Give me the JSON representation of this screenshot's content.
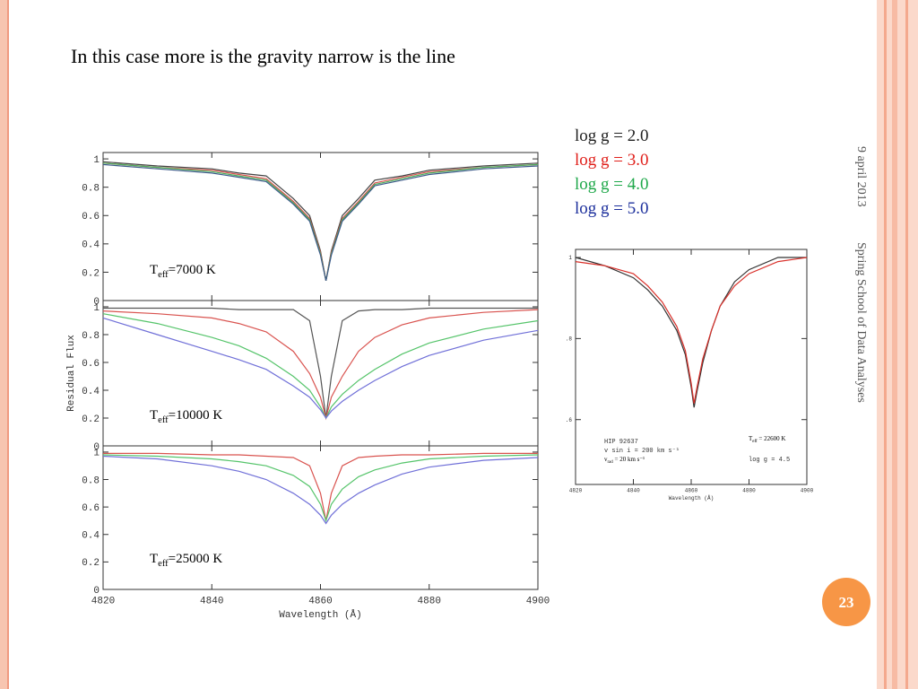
{
  "slide": {
    "title": "In this case more is the gravity narrow is the line",
    "legend": [
      {
        "label": "log g = 2.0",
        "color": "#222222"
      },
      {
        "label": "log g = 3.0",
        "color": "#e0201b"
      },
      {
        "label": "log g = 4.0",
        "color": "#1fa84a"
      },
      {
        "label": "log g = 5.0",
        "color": "#1c2f9c"
      }
    ],
    "date": "9 april 2013",
    "footer": "Spring School of Data Analyses",
    "page_number": "23"
  },
  "chart_data": [
    {
      "type": "line",
      "label": {
        "main": "T",
        "sub": "eff",
        "rest": "=7000 K"
      },
      "x": [
        4820,
        4830,
        4840,
        4845,
        4850,
        4855,
        4858,
        4860,
        4861,
        4862,
        4864,
        4867,
        4870,
        4875,
        4880,
        4890,
        4900
      ],
      "xlim": [
        4820,
        4900
      ],
      "xticks": [
        4820,
        4840,
        4860,
        4880,
        4900
      ],
      "ylim": [
        0,
        1.045
      ],
      "yticks": [
        0,
        0.2,
        0.4,
        0.6,
        0.8,
        1
      ],
      "series": [
        {
          "color": "#444444",
          "values": [
            0.98,
            0.95,
            0.93,
            0.9,
            0.88,
            0.72,
            0.6,
            0.35,
            0.14,
            0.35,
            0.6,
            0.72,
            0.85,
            0.88,
            0.92,
            0.95,
            0.97
          ]
        },
        {
          "color": "#d9534f",
          "values": [
            0.97,
            0.94,
            0.92,
            0.89,
            0.86,
            0.7,
            0.58,
            0.34,
            0.14,
            0.34,
            0.58,
            0.7,
            0.83,
            0.87,
            0.91,
            0.94,
            0.96
          ]
        },
        {
          "color": "#4cae5c",
          "values": [
            0.97,
            0.94,
            0.91,
            0.88,
            0.85,
            0.69,
            0.57,
            0.33,
            0.14,
            0.33,
            0.57,
            0.69,
            0.82,
            0.86,
            0.9,
            0.94,
            0.96
          ]
        },
        {
          "color": "#3d5a8a",
          "values": [
            0.96,
            0.93,
            0.9,
            0.87,
            0.84,
            0.68,
            0.56,
            0.32,
            0.14,
            0.32,
            0.56,
            0.68,
            0.81,
            0.85,
            0.89,
            0.93,
            0.95
          ]
        }
      ]
    },
    {
      "type": "line",
      "label": {
        "main": "T",
        "sub": "eff",
        "rest": "=10000 K"
      },
      "ylabel": "Residual Flux",
      "x": [
        4820,
        4830,
        4840,
        4845,
        4850,
        4855,
        4858,
        4860,
        4861,
        4862,
        4864,
        4867,
        4870,
        4875,
        4880,
        4890,
        4900
      ],
      "xlim": [
        4820,
        4900
      ],
      "xticks": [
        4820,
        4840,
        4860,
        4880,
        4900
      ],
      "ylim": [
        0,
        1.045
      ],
      "yticks": [
        0,
        0.2,
        0.4,
        0.6,
        0.8,
        1
      ],
      "series": [
        {
          "color": "#555555",
          "values": [
            0.99,
            0.99,
            0.99,
            0.98,
            0.98,
            0.98,
            0.9,
            0.5,
            0.2,
            0.5,
            0.9,
            0.97,
            0.98,
            0.98,
            0.99,
            0.99,
            0.99
          ]
        },
        {
          "color": "#d9534f",
          "values": [
            0.97,
            0.95,
            0.92,
            0.88,
            0.82,
            0.68,
            0.52,
            0.35,
            0.2,
            0.35,
            0.5,
            0.68,
            0.78,
            0.87,
            0.92,
            0.96,
            0.98
          ]
        },
        {
          "color": "#55c46a",
          "values": [
            0.95,
            0.88,
            0.78,
            0.72,
            0.63,
            0.5,
            0.4,
            0.28,
            0.2,
            0.28,
            0.37,
            0.47,
            0.55,
            0.66,
            0.74,
            0.84,
            0.9
          ]
        },
        {
          "color": "#7070d8",
          "values": [
            0.92,
            0.8,
            0.68,
            0.62,
            0.55,
            0.43,
            0.35,
            0.26,
            0.2,
            0.25,
            0.32,
            0.4,
            0.47,
            0.57,
            0.65,
            0.76,
            0.83
          ]
        }
      ]
    },
    {
      "type": "line",
      "label": {
        "main": "T",
        "sub": "eff",
        "rest": "=25000 K"
      },
      "xlabel": "Wavelength (Å)",
      "show_xtick_labels": true,
      "x": [
        4820,
        4830,
        4840,
        4845,
        4850,
        4855,
        4858,
        4860,
        4861,
        4862,
        4864,
        4867,
        4870,
        4875,
        4880,
        4890,
        4900
      ],
      "xlim": [
        4820,
        4900
      ],
      "xticks": [
        4820,
        4840,
        4860,
        4880,
        4900
      ],
      "ylim": [
        0,
        1.045
      ],
      "yticks": [
        0,
        0.2,
        0.4,
        0.6,
        0.8,
        1
      ],
      "series": [
        {
          "color": "#d9534f",
          "values": [
            0.99,
            0.99,
            0.98,
            0.98,
            0.97,
            0.96,
            0.9,
            0.7,
            0.5,
            0.7,
            0.9,
            0.96,
            0.97,
            0.98,
            0.98,
            0.99,
            0.99
          ]
        },
        {
          "color": "#55c46a",
          "values": [
            0.98,
            0.97,
            0.95,
            0.93,
            0.9,
            0.83,
            0.75,
            0.62,
            0.5,
            0.62,
            0.73,
            0.82,
            0.87,
            0.92,
            0.95,
            0.97,
            0.98
          ]
        },
        {
          "color": "#7070d8",
          "values": [
            0.97,
            0.95,
            0.9,
            0.86,
            0.8,
            0.7,
            0.62,
            0.54,
            0.48,
            0.54,
            0.62,
            0.7,
            0.76,
            0.84,
            0.89,
            0.94,
            0.96
          ]
        }
      ]
    },
    {
      "type": "line",
      "xlabel": "Wavelength (Å)",
      "show_xtick_labels": true,
      "annotations": {
        "star": "HIP 92637",
        "vsini": "v sin i = 200  km  s⁻¹",
        "vrad": {
          "main": "v",
          "sub": "rad",
          "rest": " = 20  km  s⁻¹"
        },
        "teff": {
          "main": "T",
          "sub": "eff",
          "rest": " = 22600  K"
        },
        "logg": "log g = 4.5"
      },
      "x": [
        4820,
        4830,
        4840,
        4845,
        4850,
        4855,
        4858,
        4860,
        4861,
        4862,
        4864,
        4867,
        4870,
        4875,
        4880,
        4890,
        4900
      ],
      "xlim": [
        4820,
        4900
      ],
      "xticks": [
        4820,
        4840,
        4860,
        4880,
        4900
      ],
      "ylim": [
        0.44,
        1.02
      ],
      "yticks": [
        {
          "value": 0.6,
          "label": ".6"
        },
        {
          "value": 0.8,
          "label": ".8"
        },
        1
      ],
      "series": [
        {
          "color": "#333333",
          "values": [
            1.0,
            0.98,
            0.95,
            0.92,
            0.88,
            0.82,
            0.76,
            0.68,
            0.63,
            0.67,
            0.74,
            0.82,
            0.88,
            0.94,
            0.97,
            1.0,
            1.0
          ]
        },
        {
          "color": "#d9302a",
          "values": [
            0.99,
            0.98,
            0.96,
            0.93,
            0.89,
            0.83,
            0.77,
            0.69,
            0.64,
            0.68,
            0.75,
            0.82,
            0.88,
            0.93,
            0.96,
            0.99,
            1.0
          ]
        }
      ]
    }
  ]
}
